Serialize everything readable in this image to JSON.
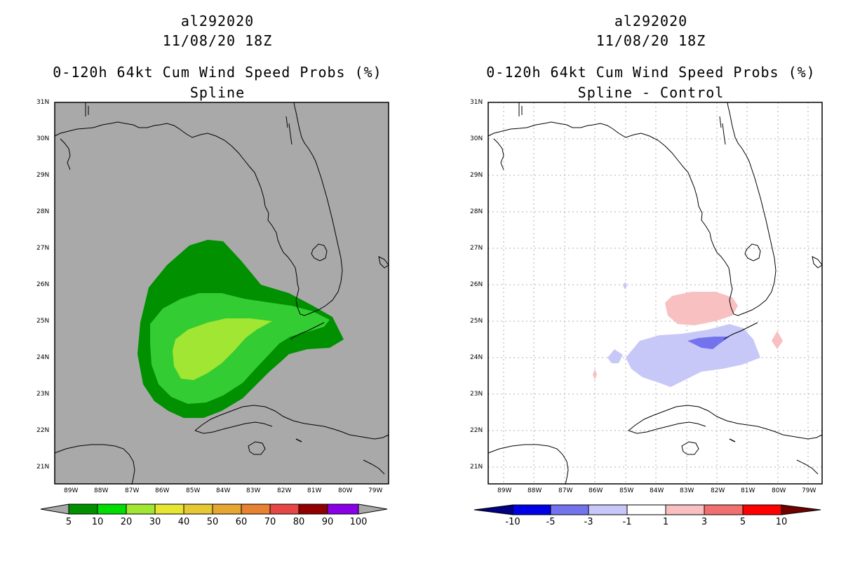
{
  "left": {
    "storm_id": "al292020",
    "datetime": "11/08/20 18Z",
    "product": "0-120h 64kt Cum Wind Speed Probs (%)",
    "subtitle": "Spline",
    "background_color": "#a9a9a9",
    "colorbar": {
      "labels": [
        "5",
        "10",
        "20",
        "30",
        "40",
        "50",
        "60",
        "70",
        "80",
        "90",
        "100"
      ],
      "colors": [
        "#009000",
        "#00dd00",
        "#a0e632",
        "#e6e632",
        "#e6c832",
        "#e6a632",
        "#e68232",
        "#e64646",
        "#900000",
        "#8a00e6"
      ],
      "extend_colors": [
        "#a9a9a9",
        "#a9a9a9"
      ]
    },
    "contour_colors": [
      "#009000",
      "#33cc33",
      "#a0e632"
    ]
  },
  "right": {
    "storm_id": "al292020",
    "datetime": "11/08/20 18Z",
    "product": "0-120h 64kt Cum Wind Speed Probs (%)",
    "subtitle": "Spline - Control",
    "background_color": "#ffffff",
    "colorbar": {
      "labels": [
        "-10",
        "-5",
        "-3",
        "-1",
        "1",
        "3",
        "5",
        "10"
      ],
      "colors": [
        "#0000e6",
        "#7373ee",
        "#c8c8f8",
        "#ffffff",
        "#f8c0c0",
        "#f07070",
        "#ff0000"
      ],
      "extend_colors": [
        "#000080",
        "#700000"
      ]
    },
    "contour_colors": [
      "#c8c8f8",
      "#7373ee",
      "#f8c0c0"
    ]
  },
  "axes": {
    "lat_labels": [
      "31N",
      "30N",
      "29N",
      "28N",
      "27N",
      "26N",
      "25N",
      "24N",
      "23N",
      "22N",
      "21N"
    ],
    "lon_labels": [
      "89W",
      "88W",
      "87W",
      "86W",
      "85W",
      "84W",
      "83W",
      "82W",
      "81W",
      "80W",
      "79W"
    ]
  }
}
